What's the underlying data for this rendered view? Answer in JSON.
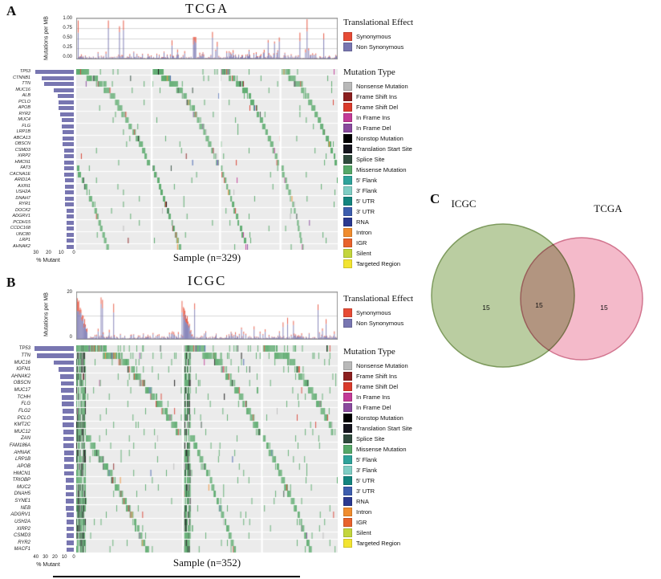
{
  "chart_data": [
    {
      "id": "tcga_oncoplot",
      "type": "heatmap",
      "panel_label": "A",
      "title": "TCGA",
      "xlabel": "Sample (n=329)",
      "n_samples": 329,
      "tmb_axis": {
        "label": "Mutations per MB",
        "ticks": [
          "1.00",
          "0.75",
          "0.50",
          "0.25",
          "0.00"
        ],
        "max": 1.0
      },
      "pct_axis": {
        "label": "% Mutant",
        "ticks": [
          "30",
          "20",
          "10",
          "0"
        ],
        "max": 33
      },
      "genes": [
        "TP53",
        "CTNNB1",
        "TTN",
        "MUC16",
        "ALB",
        "PCLO",
        "APOB",
        "RYR2",
        "MUC4",
        "FLG",
        "LRP1B",
        "ABCA13",
        "OBSCN",
        "CSMD3",
        "XIRP2",
        "HMCN1",
        "FAT3",
        "CACNA1E",
        "ARID1A",
        "AXIN1",
        "USH2A",
        "DNAH7",
        "RYR1",
        "DOCK2",
        "ADGRV1",
        "PCDH15",
        "CCDC168",
        "UNC80",
        "LRP1",
        "AHNAK2"
      ],
      "pct_mutant": [
        31,
        26,
        24,
        16,
        13,
        12,
        12,
        11,
        10,
        10,
        9,
        9,
        9,
        8,
        8,
        8,
        8,
        8,
        7,
        7,
        7,
        7,
        7,
        6,
        6,
        6,
        6,
        6,
        6,
        6
      ]
    },
    {
      "id": "icgc_oncoplot",
      "type": "heatmap",
      "panel_label": "B",
      "title": "ICGC",
      "xlabel": "Sample (n=352)",
      "n_samples": 352,
      "tmb_axis": {
        "label": "Mutations per MB",
        "ticks": [
          "20",
          "0"
        ],
        "max": 20
      },
      "pct_axis": {
        "label": "% Mutant",
        "ticks": [
          "40",
          "30",
          "20",
          "10",
          "0"
        ],
        "max": 44
      },
      "genes": [
        "TP53",
        "TTN",
        "MUC16",
        "IGFN1",
        "AHNAK2",
        "OBSCN",
        "MUC17",
        "TCHH",
        "FLG",
        "FLG2",
        "PCLO",
        "KMT2C",
        "MUC12",
        "ZAN",
        "FAM186A",
        "AHNAK",
        "LRP1B",
        "APOB",
        "HMCN1",
        "TRIOBP",
        "MUC2",
        "DNAH5",
        "SYNE1",
        "NEB",
        "ADGRV1",
        "USH2A",
        "XIRP2",
        "CSMD3",
        "RYR2",
        "MACF1"
      ],
      "pct_mutant": [
        42,
        40,
        22,
        16,
        15,
        14,
        14,
        13,
        13,
        12,
        12,
        12,
        11,
        11,
        11,
        10,
        10,
        10,
        10,
        9,
        9,
        9,
        9,
        9,
        8,
        8,
        8,
        8,
        8,
        8
      ]
    },
    {
      "id": "cohort_overlap_venn",
      "type": "venn",
      "panel_label": "C",
      "sets": [
        {
          "label": "ICGC",
          "color": "#AEC491",
          "stroke": "#7E9B5E"
        },
        {
          "label": "TCGA",
          "color": "#F2AEC1",
          "stroke": "#D2758F"
        }
      ],
      "counts": {
        "icgc_only": 15,
        "overlap": 15,
        "tcga_only": 15
      }
    }
  ],
  "legends": {
    "translational_effect": {
      "title": "Translational Effect",
      "items": [
        {
          "label": "Synonymous",
          "color": "#E64B35"
        },
        {
          "label": "Non Synonymous",
          "color": "#7876B1"
        }
      ]
    },
    "mutation_type": {
      "title": "Mutation Type",
      "items": [
        {
          "label": "Nonsense Mutation",
          "color": "#B9B9B9"
        },
        {
          "label": "Frame Shift Ins",
          "color": "#8B1F1F"
        },
        {
          "label": "Frame Shift Del",
          "color": "#D93A2B"
        },
        {
          "label": "In Frame Ins",
          "color": "#C23A97"
        },
        {
          "label": "In Frame Del",
          "color": "#8A4A9E"
        },
        {
          "label": "Nonstop Mutation",
          "color": "#000000"
        },
        {
          "label": "Translation Start Site",
          "color": "#15151E"
        },
        {
          "label": "Splice Site",
          "color": "#2F4A3D"
        },
        {
          "label": "Missense Mutation",
          "color": "#55A868"
        },
        {
          "label": "5' Flank",
          "color": "#2FA39B"
        },
        {
          "label": "3' Flank",
          "color": "#7FCDC4"
        },
        {
          "label": "5' UTR",
          "color": "#13847E"
        },
        {
          "label": "3' UTR",
          "color": "#3D5DAE"
        },
        {
          "label": "RNA",
          "color": "#2B3990"
        },
        {
          "label": "Intron",
          "color": "#F08C2E"
        },
        {
          "label": "IGR",
          "color": "#E8622C"
        },
        {
          "label": "Silent",
          "color": "#C3D53C"
        },
        {
          "label": "Targeted Region",
          "color": "#F2E431"
        }
      ]
    }
  }
}
